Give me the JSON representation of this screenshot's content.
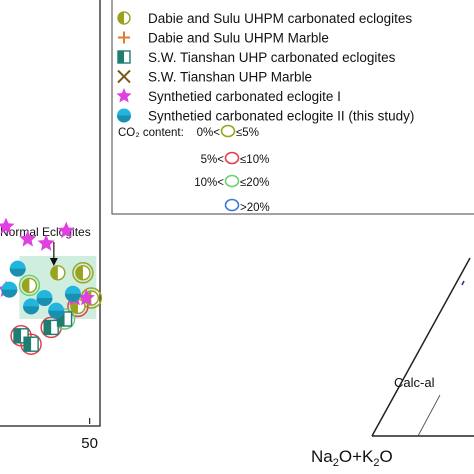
{
  "chart_data": [
    {
      "type": "scatter",
      "xlabel": "",
      "ylabel": "",
      "x_ticks": [
        "50"
      ],
      "xlim": [
        0,
        55
      ],
      "ylim": [
        0,
        100
      ],
      "shaded_field": {
        "label": "Normal Eclogites",
        "x_range": [
          8,
          54
        ],
        "y_range": [
          25,
          40
        ]
      },
      "series": [
        {
          "name": "Dabie and Sulu UHPM carbonated eclogites",
          "marker": "half-circle",
          "color": "#9aa31e",
          "points": [
            [
              46,
              36
            ],
            [
              51,
              30
            ],
            [
              43,
              28
            ],
            [
              14,
              33
            ],
            [
              31,
              36
            ]
          ]
        },
        {
          "name": "Dabie and Sulu UHPM Marble",
          "marker": "plus",
          "color": "#e37a2e",
          "points": []
        },
        {
          "name": "S.W. Tianshan UHP carbonated eclogites",
          "marker": "half-square",
          "color": "#1f7d72",
          "points": [
            [
              9,
              21
            ],
            [
              15,
              19
            ],
            [
              27,
              23
            ],
            [
              35,
              25
            ]
          ]
        },
        {
          "name": "S.W. Tianshan UHP Marble",
          "marker": "x",
          "color": "#7a5a1a",
          "points": []
        },
        {
          "name": "Synthetied carbonated eclogite I",
          "marker": "star",
          "color": "#e040e0",
          "points": [
            [
              0,
              47
            ],
            [
              13,
              44
            ],
            [
              24,
              43
            ],
            [
              36,
              46
            ],
            [
              0,
              32
            ],
            [
              41,
              30
            ],
            [
              48,
              30
            ]
          ]
        },
        {
          "name": "Synthetied carbonated eclogite II (this study)",
          "marker": "dot",
          "color": "#22b5de",
          "points": [
            [
              2,
              32
            ],
            [
              7,
              37
            ],
            [
              15,
              28
            ],
            [
              23,
              30
            ],
            [
              30,
              27
            ],
            [
              40,
              31
            ]
          ]
        }
      ],
      "co2_legend": {
        "title": "CO₂ content:",
        "items": [
          {
            "label": "0%<",
            "suffix": "≤5%",
            "color": "#9aa31e"
          },
          {
            "label": "5%<",
            "suffix": "≤10%",
            "color": "#e04050"
          },
          {
            "label": "10%<",
            "suffix": "≤20%",
            "color": "#6fd06f"
          },
          {
            "label": "",
            "suffix": ">20%",
            "color": "#3b7bd6"
          }
        ]
      },
      "co2_rings": [
        {
          "x": 46,
          "y": 36,
          "color": "#9aa31e"
        },
        {
          "x": 51,
          "y": 30,
          "color": "#9aa31e"
        },
        {
          "x": 43,
          "y": 28,
          "color": "#e04050"
        },
        {
          "x": 9,
          "y": 21,
          "color": "#e04050"
        },
        {
          "x": 15,
          "y": 19,
          "color": "#e04050"
        },
        {
          "x": 27,
          "y": 23,
          "color": "#e04050"
        },
        {
          "x": 35,
          "y": 25,
          "color": "#6fd06f"
        },
        {
          "x": 14,
          "y": 33,
          "color": "#6fd06f"
        }
      ]
    },
    {
      "type": "ternary",
      "vertex_label": "Na₂O+K₂O",
      "field_label": "Calc-al"
    }
  ]
}
